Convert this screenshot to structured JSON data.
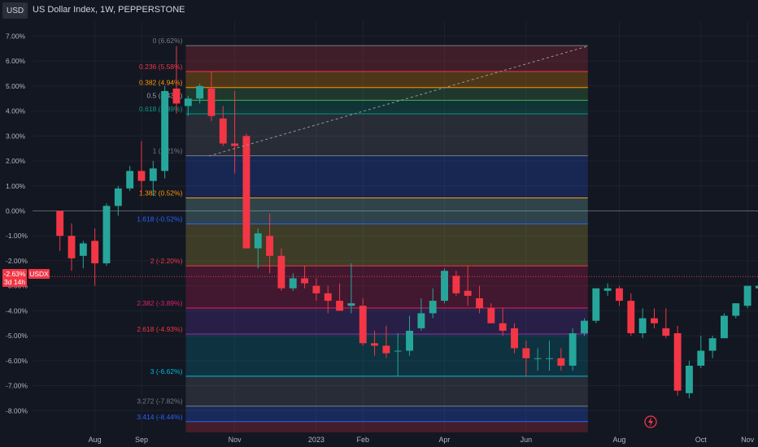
{
  "header": {
    "symbol_badge": "USD",
    "title": "US Dollar Index, 1W, PEPPERSTONE"
  },
  "colors": {
    "background": "#131722",
    "up": "#26a69a",
    "down": "#f23645",
    "axis_text": "#b2b5be",
    "grid": "#1e222d"
  },
  "price_tag": {
    "value": "-2.63%",
    "countdown": "3d 14h",
    "label": "USDX"
  },
  "chart_data": {
    "type": "candlestick",
    "unit": "%",
    "y_ticks": [
      7,
      6,
      5,
      4,
      3,
      2,
      1,
      0,
      -1,
      -2,
      -3,
      -4,
      -5,
      -6,
      -7,
      -8
    ],
    "y_tick_labels": [
      "7.00%",
      "6.00%",
      "5.00%",
      "4.00%",
      "3.00%",
      "2.00%",
      "1.00%",
      "0.00%",
      "-1.00%",
      "-2.00%",
      "-3.00%",
      "-4.00%",
      "-5.00%",
      "-6.00%",
      "-7.00%",
      "-8.00%"
    ],
    "ylim": [
      -8.87,
      7.6
    ],
    "x_labels": [
      {
        "label": "Aug",
        "week": 3
      },
      {
        "label": "Sep",
        "week": 7
      },
      {
        "label": "Nov",
        "week": 15
      },
      {
        "label": "2023",
        "week": 22
      },
      {
        "label": "Feb",
        "week": 26
      },
      {
        "label": "Apr",
        "week": 33
      },
      {
        "label": "Jun",
        "week": 40
      },
      {
        "label": "Aug",
        "week": 48
      },
      {
        "label": "Oct",
        "week": 55
      },
      {
        "label": "Nov",
        "week": 59
      }
    ],
    "x_range": [
      -2.35,
      59.9
    ],
    "candles": [
      {
        "o": 0.0,
        "h": 0.0,
        "l": -1.6,
        "c": -1.0
      },
      {
        "o": -1.0,
        "h": -0.5,
        "l": -2.4,
        "c": -1.9
      },
      {
        "o": -1.8,
        "h": -1.2,
        "l": -2.3,
        "c": -1.3
      },
      {
        "o": -1.2,
        "h": -0.7,
        "l": -3.0,
        "c": -2.1
      },
      {
        "o": -2.1,
        "h": 0.3,
        "l": -2.2,
        "c": 0.2
      },
      {
        "o": 0.2,
        "h": 1.0,
        "l": -0.2,
        "c": 0.9
      },
      {
        "o": 0.9,
        "h": 1.8,
        "l": 0.8,
        "c": 1.6
      },
      {
        "o": 1.6,
        "h": 2.8,
        "l": 0.7,
        "c": 1.2
      },
      {
        "o": 1.2,
        "h": 2.0,
        "l": 0.6,
        "c": 1.7
      },
      {
        "o": 1.6,
        "h": 5.0,
        "l": 1.3,
        "c": 4.8
      },
      {
        "o": 4.9,
        "h": 6.6,
        "l": 3.9,
        "c": 4.3
      },
      {
        "o": 4.2,
        "h": 4.6,
        "l": 3.8,
        "c": 4.5
      },
      {
        "o": 4.5,
        "h": 5.1,
        "l": 4.3,
        "c": 5.0
      },
      {
        "o": 4.9,
        "h": 5.6,
        "l": 3.6,
        "c": 3.8
      },
      {
        "o": 3.7,
        "h": 4.2,
        "l": 2.6,
        "c": 2.7
      },
      {
        "o": 2.7,
        "h": 4.8,
        "l": 1.5,
        "c": 2.6
      },
      {
        "o": 3.0,
        "h": 3.1,
        "l": -1.5,
        "c": -1.5
      },
      {
        "o": -1.5,
        "h": -0.7,
        "l": -2.3,
        "c": -0.9
      },
      {
        "o": -1.0,
        "h": -0.1,
        "l": -2.5,
        "c": -1.8
      },
      {
        "o": -1.8,
        "h": -1.5,
        "l": -3.2,
        "c": -3.1
      },
      {
        "o": -3.1,
        "h": -2.5,
        "l": -3.2,
        "c": -2.7
      },
      {
        "o": -2.7,
        "h": -2.2,
        "l": -3.1,
        "c": -2.9
      },
      {
        "o": -3.0,
        "h": -2.7,
        "l": -3.6,
        "c": -3.3
      },
      {
        "o": -3.3,
        "h": -3.0,
        "l": -4.1,
        "c": -3.6
      },
      {
        "o": -3.6,
        "h": -2.9,
        "l": -4.0,
        "c": -4.0
      },
      {
        "o": -3.8,
        "h": -2.1,
        "l": -4.1,
        "c": -3.7
      },
      {
        "o": -3.8,
        "h": -3.5,
        "l": -5.4,
        "c": -5.3
      },
      {
        "o": -5.3,
        "h": -4.8,
        "l": -5.8,
        "c": -5.4
      },
      {
        "o": -5.4,
        "h": -4.6,
        "l": -5.9,
        "c": -5.7
      },
      {
        "o": -5.6,
        "h": -4.9,
        "l": -6.6,
        "c": -5.6
      },
      {
        "o": -5.6,
        "h": -4.2,
        "l": -5.8,
        "c": -4.8
      },
      {
        "o": -4.7,
        "h": -3.5,
        "l": -4.8,
        "c": -4.1
      },
      {
        "o": -4.1,
        "h": -3.1,
        "l": -4.3,
        "c": -3.6
      },
      {
        "o": -3.6,
        "h": -2.3,
        "l": -3.7,
        "c": -2.4
      },
      {
        "o": -2.6,
        "h": -2.4,
        "l": -3.4,
        "c": -3.3
      },
      {
        "o": -3.2,
        "h": -2.2,
        "l": -3.8,
        "c": -3.4
      },
      {
        "o": -3.5,
        "h": -3.0,
        "l": -4.1,
        "c": -3.9
      },
      {
        "o": -3.9,
        "h": -3.7,
        "l": -4.5,
        "c": -4.5
      },
      {
        "o": -4.5,
        "h": -3.9,
        "l": -5.0,
        "c": -4.8
      },
      {
        "o": -4.7,
        "h": -4.5,
        "l": -5.7,
        "c": -5.5
      },
      {
        "o": -5.5,
        "h": -5.2,
        "l": -6.6,
        "c": -5.9
      },
      {
        "o": -5.9,
        "h": -5.5,
        "l": -6.4,
        "c": -5.9
      },
      {
        "o": -5.9,
        "h": -5.2,
        "l": -6.4,
        "c": -5.9
      },
      {
        "o": -5.9,
        "h": -5.5,
        "l": -6.4,
        "c": -6.2
      },
      {
        "o": -6.2,
        "h": -4.7,
        "l": -6.4,
        "c": -4.9
      },
      {
        "o": -4.9,
        "h": -4.3,
        "l": -5.0,
        "c": -4.4
      },
      {
        "o": -4.4,
        "h": -3.1,
        "l": -4.5,
        "c": -3.1
      },
      {
        "o": -3.2,
        "h": -2.9,
        "l": -3.4,
        "c": -3.1
      },
      {
        "o": -3.1,
        "h": -3.0,
        "l": -3.8,
        "c": -3.6
      },
      {
        "o": -3.6,
        "h": -3.3,
        "l": -5.0,
        "c": -4.9
      },
      {
        "o": -4.9,
        "h": -3.9,
        "l": -5.1,
        "c": -4.3
      },
      {
        "o": -4.3,
        "h": -3.9,
        "l": -4.7,
        "c": -4.5
      },
      {
        "o": -4.7,
        "h": -3.9,
        "l": -5.1,
        "c": -5.0
      },
      {
        "o": -4.9,
        "h": -4.6,
        "l": -7.4,
        "c": -7.2
      },
      {
        "o": -7.3,
        "h": -6.0,
        "l": -7.5,
        "c": -6.2
      },
      {
        "o": -6.2,
        "h": -5.0,
        "l": -6.3,
        "c": -5.6
      },
      {
        "o": -5.6,
        "h": -5.0,
        "l": -5.9,
        "c": -5.1
      },
      {
        "o": -5.1,
        "h": -4.1,
        "l": -5.1,
        "c": -4.2
      },
      {
        "o": -4.2,
        "h": -3.7,
        "l": -4.3,
        "c": -3.7
      },
      {
        "o": -3.8,
        "h": -3.0,
        "l": -3.9,
        "c": -3.0
      },
      {
        "o": -3.1,
        "h": -2.3,
        "l": -4.1,
        "c": -3.0
      },
      {
        "o": -3.0,
        "h": -2.2,
        "l": -3.1,
        "c": -2.2
      },
      {
        "o": -2.6,
        "h": -2.5,
        "l": -2.8,
        "c": -2.7
      }
    ],
    "fib_levels": [
      {
        "ratio": "0",
        "value": 6.62,
        "label": "0 (6.62%)",
        "line": "#787b86",
        "fill": "rgba(242,54,69,0.20)",
        "label_color": "#787b86"
      },
      {
        "ratio": "0.236",
        "value": 5.58,
        "label": "0.236 (5.58%)",
        "line": "#f23645",
        "fill": "rgba(255,152,0,0.25)",
        "label_color": "#f23645"
      },
      {
        "ratio": "0.382",
        "value": 4.94,
        "label": "0.382 (4.94%)",
        "line": "#ff9800",
        "fill": "rgba(76,175,80,0.22)",
        "label_color": "#ff9800"
      },
      {
        "ratio": "0.5",
        "value": 4.43,
        "label": "0.5 (4.43%)",
        "line": "#4caf50",
        "fill": "rgba(8,153,129,0.22)",
        "label_color": "#9ba1a9"
      },
      {
        "ratio": "0.618",
        "value": 3.89,
        "label": "0.618 (3.89%)",
        "line": "#089981",
        "fill": "rgba(120,123,134,0.22)",
        "label_color": "#089981"
      },
      {
        "ratio": "1",
        "value": 2.21,
        "label": "1 (2.21%)",
        "line": "#787b86",
        "fill": "rgba(41,98,255,0.22)",
        "label_color": "#787b86"
      },
      {
        "ratio": "1.382",
        "value": 0.52,
        "label": "1.382 (0.52%)",
        "line": "#ff9800",
        "fill": "rgba(128,203,196,0.25)",
        "label_color": "#ff9800"
      },
      {
        "ratio": "1.618",
        "value": -0.52,
        "label": "1.618 (-0.52%)",
        "line": "#2962ff",
        "fill": "rgba(255,235,59,0.18)",
        "label_color": "#2962ff"
      },
      {
        "ratio": "2",
        "value": -2.2,
        "label": "2 (-2.20%)",
        "line": "#f23645",
        "fill": "rgba(233,30,99,0.22)",
        "label_color": "#f23645"
      },
      {
        "ratio": "2.382",
        "value": -3.89,
        "label": "2.382 (-3.89%)",
        "line": "#e91e63",
        "fill": "rgba(103,58,183,0.24)",
        "label_color": "#e91e63"
      },
      {
        "ratio": "2.618",
        "value": -4.93,
        "label": "2.618 (-4.93%)",
        "line": "#9c27b0",
        "fill": "rgba(0,151,167,0.22)",
        "label_color": "#f23645"
      },
      {
        "ratio": "3",
        "value": -6.62,
        "label": "3 (-6.62%)",
        "line": "#00bcd4",
        "fill": "rgba(120,123,134,0.22)",
        "label_color": "#00bcd4"
      },
      {
        "ratio": "3.272",
        "value": -7.82,
        "label": "3.272 (-7.82%)",
        "line": "#787b86",
        "fill": "rgba(41,98,255,0.25)",
        "label_color": "#787b86"
      },
      {
        "ratio": "3.414",
        "value": -8.44,
        "label": "3.414 (-8.44%)",
        "line": "#2962ff",
        "fill": "rgba(242,54,69,0.22)",
        "label_color": "#2962ff"
      }
    ],
    "fib_start_week": 10.8,
    "fib_end_week": 45.3,
    "trend_line": {
      "from": {
        "week": 12.8,
        "value": 2.2
      },
      "to": {
        "week": 45.3,
        "value": 6.6
      }
    },
    "last_value": -2.63,
    "zero_line": 0.0
  }
}
